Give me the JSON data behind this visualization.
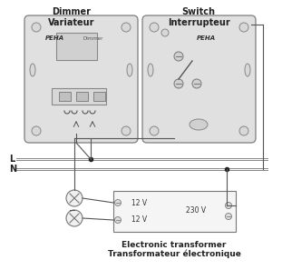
{
  "bg_color": "#f0f0f0",
  "line_color": "#555555",
  "title_dimmer": "Dimmer\nVariateur",
  "title_switch": "Switch\nInterrupteur",
  "transformer_label1": "Electronic transformer",
  "transformer_label2": "Transformateur électronique",
  "label_L": "L",
  "label_N": "N",
  "label_12V_1": "12 V",
  "label_12V_2": "12 V",
  "label_230V": "230 V",
  "peha_label": "PEHA",
  "dimmer_label": "Dimmer"
}
